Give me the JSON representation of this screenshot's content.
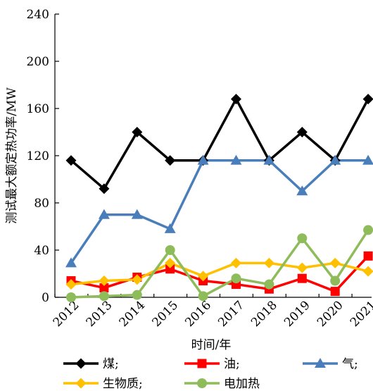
{
  "chart_data": {
    "type": "line",
    "xlabel": "时间/年",
    "ylabel": "测试最大额定热功率/MW",
    "ylim": [
      0,
      240
    ],
    "yticks": [
      "0",
      "40",
      "80",
      "120",
      "160",
      "200",
      "240"
    ],
    "categories": [
      "2012",
      "2013",
      "2014",
      "2015",
      "2016",
      "2017",
      "2018",
      "2019",
      "2020",
      "2021"
    ],
    "grid": false,
    "legend_position": "bottom",
    "series": [
      {
        "name": "煤;",
        "color": "#000000",
        "marker": "diamond",
        "values": [
          116,
          92,
          140,
          116,
          116,
          168,
          116,
          140,
          116,
          168
        ]
      },
      {
        "name": "油;",
        "color": "#ff0000",
        "marker": "square",
        "values": [
          14,
          8,
          17,
          24,
          14,
          11,
          7,
          16,
          5,
          35
        ]
      },
      {
        "name": "气;",
        "color": "#4a7ebb",
        "marker": "triangle",
        "values": [
          29,
          70,
          70,
          58,
          116,
          116,
          116,
          90,
          116,
          116
        ]
      },
      {
        "name": "生物质;",
        "color": "#ffc000",
        "marker": "diamond",
        "values": [
          11,
          14,
          15,
          29,
          18,
          29,
          29,
          25,
          29,
          22
        ]
      },
      {
        "name": "电加热",
        "color": "#8fbc5a",
        "marker": "circle",
        "values": [
          0,
          1,
          2,
          40,
          1,
          16,
          11,
          50,
          14,
          57
        ]
      }
    ]
  }
}
